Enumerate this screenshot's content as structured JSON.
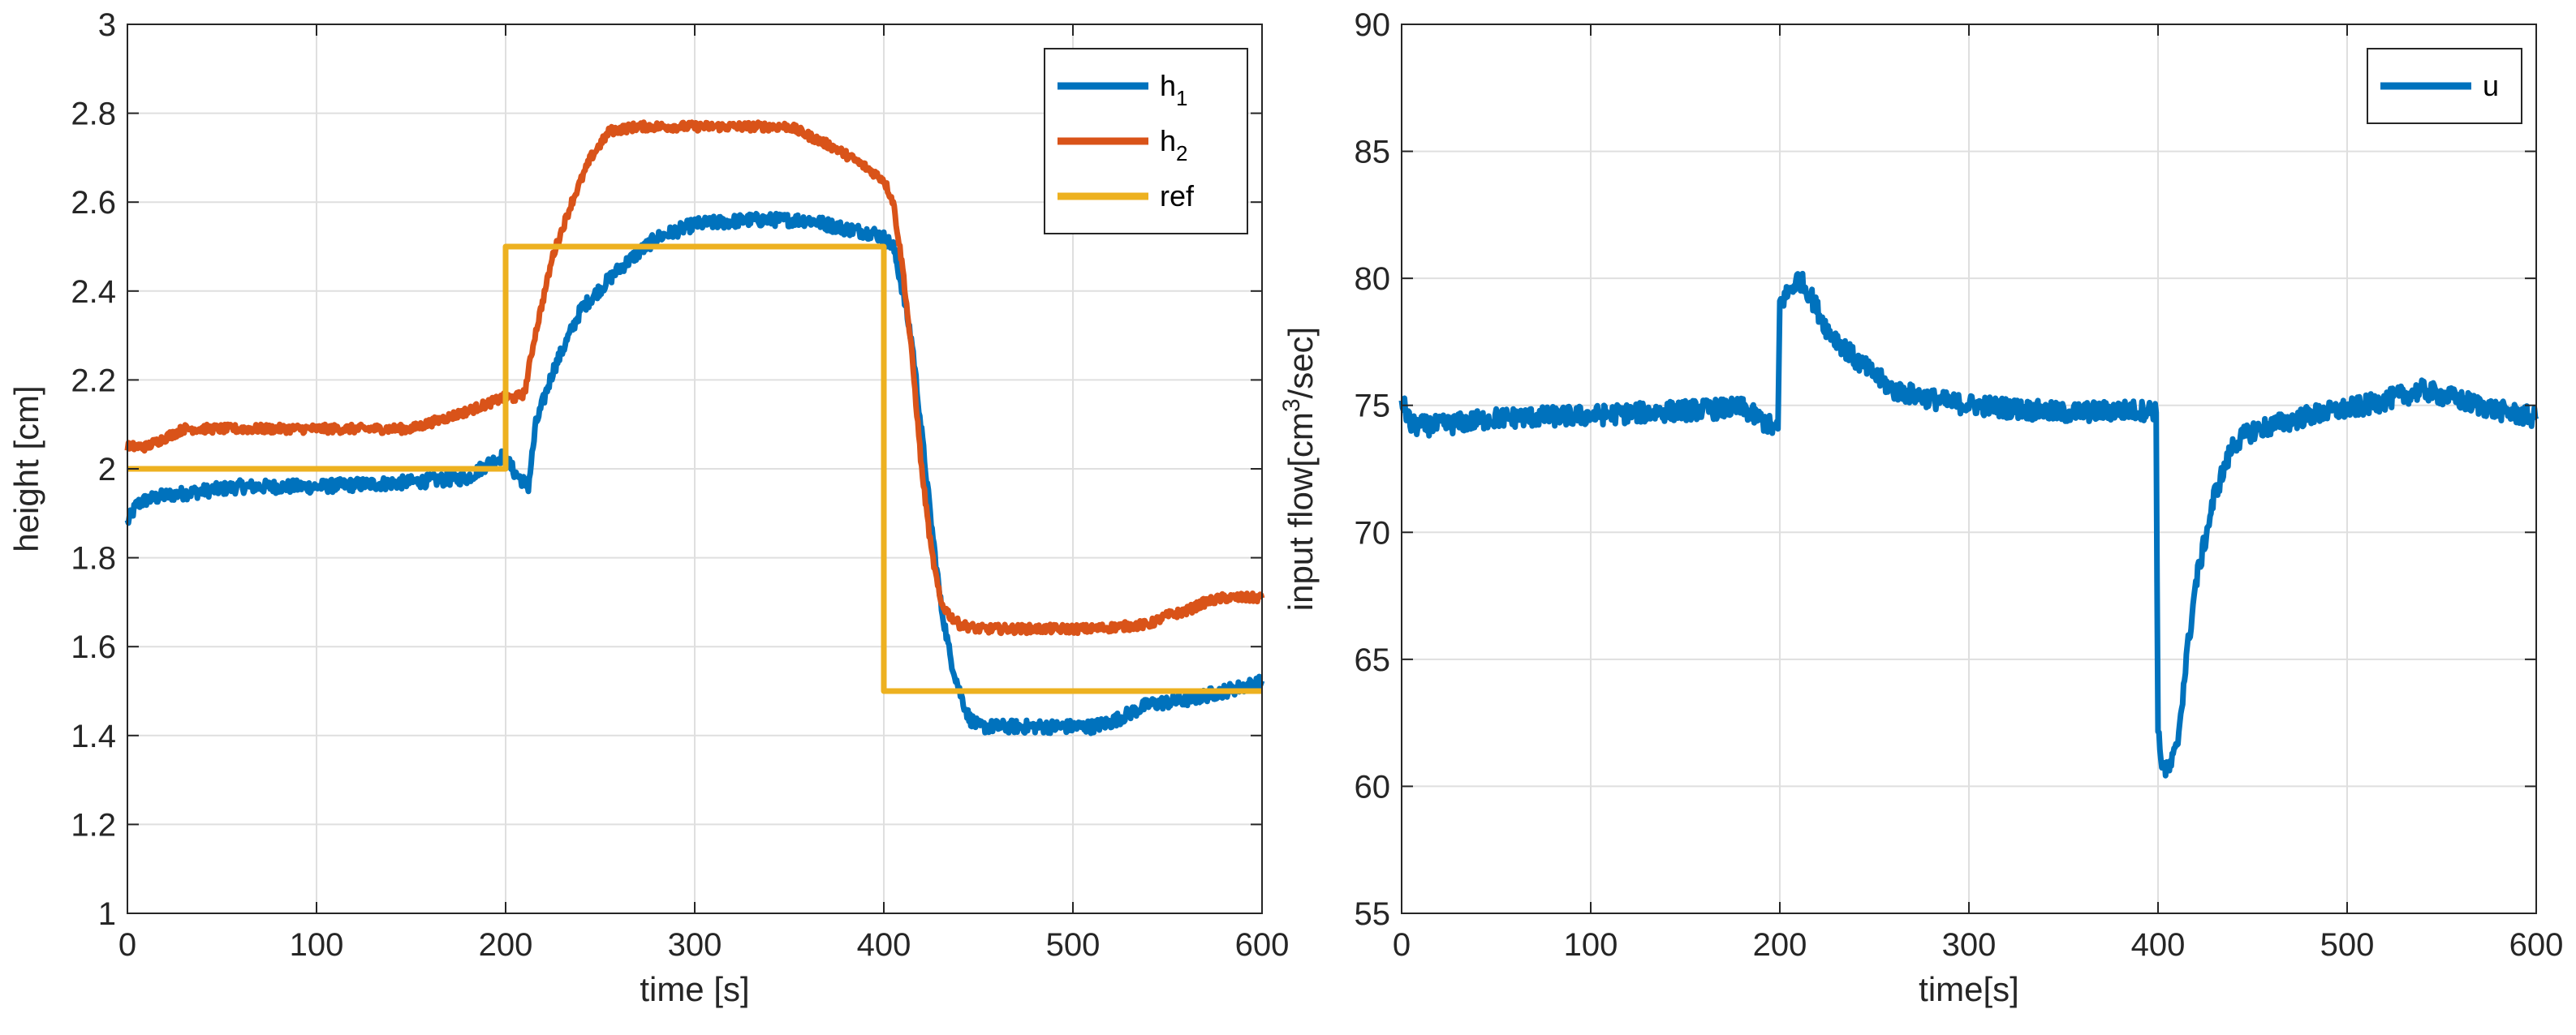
{
  "chart_data": [
    {
      "type": "line",
      "title": "",
      "xlabel": "time [s]",
      "ylabel": "height [cm]",
      "xlim": [
        0,
        600
      ],
      "ylim": [
        1,
        3
      ],
      "xticks": [
        0,
        100,
        200,
        300,
        400,
        500,
        600
      ],
      "yticks": [
        1,
        1.2,
        1.4,
        1.6,
        1.8,
        2,
        2.2,
        2.4,
        2.6,
        2.8,
        3
      ],
      "grid": true,
      "legend_position": "top-right",
      "series": [
        {
          "name": "h",
          "subscript": "1",
          "color": "#0072BD",
          "noise": 0.015,
          "x": [
            0,
            5,
            10,
            20,
            40,
            60,
            80,
            100,
            150,
            180,
            190,
            199,
            205,
            212,
            216,
            225,
            240,
            260,
            280,
            300,
            330,
            360,
            380,
            395,
            400,
            405,
            410,
            415,
            420,
            425,
            430,
            435,
            440,
            445,
            450,
            480,
            510,
            520,
            530,
            540,
            560,
            580,
            600
          ],
          "y": [
            1.88,
            1.92,
            1.93,
            1.94,
            1.95,
            1.96,
            1.96,
            1.96,
            1.97,
            1.98,
            2.01,
            2.03,
            1.99,
            1.96,
            2.1,
            2.22,
            2.36,
            2.45,
            2.52,
            2.55,
            2.56,
            2.56,
            2.54,
            2.53,
            2.52,
            2.5,
            2.4,
            2.28,
            2.08,
            1.88,
            1.7,
            1.58,
            1.5,
            1.44,
            1.42,
            1.42,
            1.42,
            1.43,
            1.45,
            1.47,
            1.48,
            1.5,
            1.52
          ]
        },
        {
          "name": "h",
          "subscript": "2",
          "color": "#D95319",
          "noise": 0.01,
          "x": [
            0,
            5,
            10,
            20,
            30,
            60,
            100,
            150,
            180,
            199,
            205,
            210,
            215,
            225,
            235,
            245,
            255,
            270,
            300,
            330,
            350,
            360,
            375,
            390,
            400,
            405,
            410,
            415,
            420,
            425,
            430,
            435,
            440,
            450,
            480,
            510,
            540,
            550,
            560,
            570,
            580,
            600
          ],
          "y": [
            2.05,
            2.05,
            2.05,
            2.07,
            2.09,
            2.09,
            2.09,
            2.09,
            2.13,
            2.16,
            2.16,
            2.17,
            2.29,
            2.48,
            2.6,
            2.7,
            2.76,
            2.77,
            2.77,
            2.77,
            2.77,
            2.75,
            2.72,
            2.68,
            2.65,
            2.6,
            2.45,
            2.25,
            2.0,
            1.82,
            1.7,
            1.67,
            1.65,
            1.64,
            1.64,
            1.64,
            1.65,
            1.67,
            1.68,
            1.7,
            1.71,
            1.71
          ]
        },
        {
          "name": "ref",
          "subscript": "",
          "color": "#EDB120",
          "noise": 0,
          "x": [
            0,
            200,
            200,
            400,
            400,
            600
          ],
          "y": [
            2,
            2,
            2.5,
            2.5,
            1.5,
            1.5
          ]
        }
      ]
    },
    {
      "type": "line",
      "title": "",
      "xlabel": "time[s]",
      "ylabel": "input flow[cm",
      "ylabel_superscript": "3",
      "ylabel_suffix": "/sec]",
      "xlim": [
        0,
        600
      ],
      "ylim": [
        55,
        90
      ],
      "xticks": [
        0,
        100,
        200,
        300,
        400,
        500,
        600
      ],
      "yticks": [
        55,
        60,
        65,
        70,
        75,
        80,
        85,
        90
      ],
      "grid": true,
      "legend_position": "top-right",
      "series": [
        {
          "name": "u",
          "subscript": "",
          "color": "#0072BD",
          "noise": 0.4,
          "x": [
            0,
            5,
            20,
            50,
            100,
            150,
            180,
            199,
            200,
            205,
            210,
            215,
            225,
            240,
            260,
            290,
            320,
            350,
            380,
            399,
            400,
            402,
            405,
            410,
            415,
            420,
            430,
            440,
            450,
            480,
            510,
            540,
            560,
            580,
            600
          ],
          "y": [
            75.2,
            74.2,
            74.2,
            74.5,
            74.6,
            74.8,
            74.9,
            74.0,
            79.0,
            79.5,
            80.0,
            79.5,
            78.0,
            76.8,
            75.6,
            75.1,
            74.9,
            74.7,
            74.8,
            74.8,
            62.0,
            61.0,
            60.5,
            61.5,
            65.0,
            68.0,
            71.5,
            73.5,
            74.0,
            74.6,
            75.0,
            75.6,
            75.2,
            74.8,
            74.5
          ]
        }
      ]
    }
  ]
}
